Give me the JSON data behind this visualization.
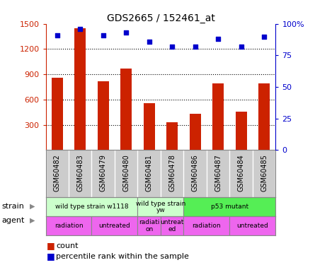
{
  "title": "GDS2665 / 152461_at",
  "samples": [
    "GSM60482",
    "GSM60483",
    "GSM60479",
    "GSM60480",
    "GSM60481",
    "GSM60478",
    "GSM60486",
    "GSM60487",
    "GSM60484",
    "GSM60485"
  ],
  "counts": [
    860,
    1450,
    820,
    970,
    560,
    330,
    430,
    790,
    460,
    790
  ],
  "percentiles": [
    91,
    96,
    91,
    93,
    86,
    82,
    82,
    88,
    82,
    90
  ],
  "ylim_left": [
    0,
    1500
  ],
  "ylim_right": [
    0,
    100
  ],
  "yticks_left": [
    300,
    600,
    900,
    1200,
    1500
  ],
  "yticks_right": [
    0,
    25,
    50,
    75,
    100
  ],
  "bar_color": "#cc2200",
  "scatter_color": "#0000cc",
  "strain_col1_color": "#ccffcc",
  "strain_col2_color": "#ccffcc",
  "strain_col3_color": "#55ee55",
  "agent_color": "#ee66ee",
  "sample_bg_color": "#cccccc",
  "grid_color": "#888888",
  "bg_color": "#ffffff",
  "label_color_left": "#cc2200",
  "label_color_right": "#0000cc",
  "bar_width": 0.5,
  "strain_groups": [
    {
      "label": "wild type strain w1118",
      "start": 0,
      "end": 4,
      "color": "#ccffcc"
    },
    {
      "label": "wild type strain\nyw",
      "start": 4,
      "end": 6,
      "color": "#ccffcc"
    },
    {
      "label": "p53 mutant",
      "start": 6,
      "end": 10,
      "color": "#55ee55"
    }
  ],
  "agent_groups": [
    {
      "label": "radiation",
      "start": 0,
      "end": 2
    },
    {
      "label": "untreated",
      "start": 2,
      "end": 4
    },
    {
      "label": "radiati\non",
      "start": 4,
      "end": 5
    },
    {
      "label": "untreat\ned",
      "start": 5,
      "end": 6
    },
    {
      "label": "radiation",
      "start": 6,
      "end": 8
    },
    {
      "label": "untreated",
      "start": 8,
      "end": 10
    }
  ]
}
